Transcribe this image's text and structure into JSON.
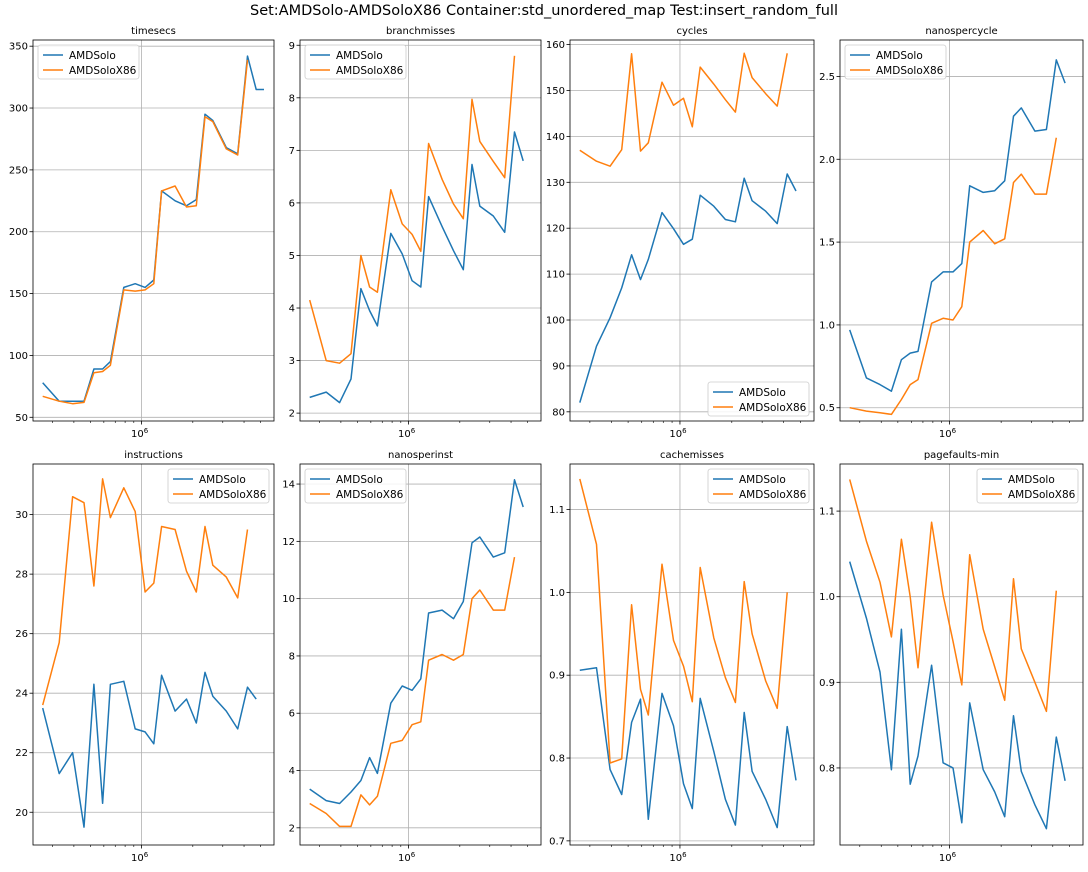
{
  "figure": {
    "suptitle": "Set:AMDSolo-AMDSoloX86  Container:std_unordered_map  Test:insert_random_full"
  },
  "chart_data": [
    {
      "type": "line",
      "title": "timesecs",
      "xscale": "log",
      "x": [
        262144,
        327680,
        393216,
        458752,
        524288,
        589824,
        655360,
        786432,
        917504,
        1048576,
        1179648,
        1310720,
        1572864,
        1835008,
        2097152,
        2359296,
        2621440,
        3145728,
        3670016,
        4194304,
        4718592,
        5242880
      ],
      "xtick_label": "10^6",
      "ylim": [
        47,
        355
      ],
      "yticks": [
        50,
        100,
        150,
        200,
        250,
        300,
        350
      ],
      "legend": "upper left",
      "grid": true,
      "series": [
        {
          "name": "AMDSolo",
          "color": "#1f77b4",
          "values": [
            78,
            63,
            63,
            63,
            89,
            89,
            95,
            155,
            158,
            155,
            161,
            233,
            225,
            221,
            226,
            295,
            290,
            268,
            263,
            342,
            315,
            315
          ]
        },
        {
          "name": "AMDSoloX86",
          "color": "#ff7f0e",
          "values": [
            67,
            63,
            61,
            62,
            86,
            87,
            92,
            153,
            152,
            153,
            158,
            233,
            237,
            220,
            221,
            293,
            289,
            267,
            262,
            339,
            null,
            null
          ]
        }
      ]
    },
    {
      "type": "line",
      "title": "branchmisses",
      "xscale": "log",
      "x": [
        262144,
        327680,
        393216,
        458752,
        524288,
        589824,
        655360,
        786432,
        917504,
        1048576,
        1179648,
        1310720,
        1572864,
        1835008,
        2097152,
        2359296,
        2621440,
        3145728,
        3670016,
        4194304,
        4718592,
        5242880
      ],
      "xtick_label": "10^6",
      "ylim": [
        1.85,
        9.1
      ],
      "yticks": [
        2,
        3,
        4,
        5,
        6,
        7,
        8,
        9
      ],
      "legend": "upper left",
      "grid": true,
      "series": [
        {
          "name": "AMDSolo",
          "color": "#1f77b4",
          "values": [
            2.3,
            2.4,
            2.2,
            2.65,
            4.37,
            3.95,
            3.66,
            5.42,
            5.03,
            4.52,
            4.4,
            6.12,
            5.55,
            5.09,
            4.73,
            6.73,
            5.94,
            5.75,
            5.44,
            7.35,
            6.8,
            null
          ]
        },
        {
          "name": "AMDSoloX86",
          "color": "#ff7f0e",
          "values": [
            4.15,
            3.0,
            2.95,
            3.13,
            5.0,
            4.4,
            4.3,
            6.25,
            5.6,
            5.4,
            5.08,
            7.13,
            6.45,
            5.98,
            5.7,
            7.97,
            7.17,
            6.79,
            6.48,
            8.8,
            null,
            null
          ]
        }
      ]
    },
    {
      "type": "line",
      "title": "cycles",
      "xscale": "log",
      "x": [
        262144,
        327680,
        393216,
        458752,
        524288,
        589824,
        655360,
        786432,
        917504,
        1048576,
        1179648,
        1310720,
        1572864,
        1835008,
        2097152,
        2359296,
        2621440,
        3145728,
        3670016,
        4194304,
        4718592,
        5242880
      ],
      "xtick_label": "10^6",
      "ylim": [
        78,
        161
      ],
      "yticks": [
        80,
        90,
        100,
        110,
        120,
        130,
        140,
        150,
        160
      ],
      "legend": "lower right",
      "grid": true,
      "series": [
        {
          "name": "AMDSolo",
          "color": "#1f77b4",
          "values": [
            82,
            94.3,
            100.5,
            107,
            114.2,
            108.8,
            113.2,
            123.4,
            119.9,
            116.5,
            117.6,
            127.2,
            124.8,
            121.9,
            121.4,
            130.9,
            126,
            123.7,
            121,
            131.8,
            128.1,
            null
          ]
        },
        {
          "name": "AMDSoloX86",
          "color": "#ff7f0e",
          "values": [
            137,
            134.6,
            133.5,
            137.1,
            158,
            136.8,
            138.6,
            151.8,
            146.8,
            148.3,
            142.1,
            155.1,
            151.4,
            148,
            145.3,
            158.1,
            152.8,
            149.3,
            146.6,
            158.1,
            null,
            null
          ]
        }
      ]
    },
    {
      "type": "line",
      "title": "nanospercycle",
      "xscale": "log",
      "x": [
        262144,
        327680,
        393216,
        458752,
        524288,
        589824,
        655360,
        786432,
        917504,
        1048576,
        1179648,
        1310720,
        1572864,
        1835008,
        2097152,
        2359296,
        2621440,
        3145728,
        3670016,
        4194304,
        4718592,
        5242880
      ],
      "xtick_label": "10^6",
      "ylim": [
        0.42,
        2.72
      ],
      "yticks": [
        0.5,
        1.0,
        1.5,
        2.0,
        2.5
      ],
      "legend": "upper left",
      "grid": true,
      "series": [
        {
          "name": "AMDSolo",
          "color": "#1f77b4",
          "values": [
            0.97,
            0.68,
            0.64,
            0.6,
            0.79,
            0.83,
            0.84,
            1.26,
            1.32,
            1.32,
            1.37,
            1.84,
            1.8,
            1.81,
            1.87,
            2.26,
            2.31,
            2.17,
            2.18,
            2.6,
            2.46,
            null
          ]
        },
        {
          "name": "AMDSoloX86",
          "color": "#ff7f0e",
          "values": [
            0.5,
            0.48,
            0.47,
            0.46,
            0.55,
            0.64,
            0.67,
            1.01,
            1.04,
            1.03,
            1.11,
            1.5,
            1.57,
            1.49,
            1.52,
            1.86,
            1.91,
            1.79,
            1.79,
            2.13,
            null,
            null
          ]
        }
      ]
    },
    {
      "type": "line",
      "title": "instructions",
      "xscale": "log",
      "x": [
        262144,
        327680,
        393216,
        458752,
        524288,
        589824,
        655360,
        786432,
        917504,
        1048576,
        1179648,
        1310720,
        1572864,
        1835008,
        2097152,
        2359296,
        2621440,
        3145728,
        3670016,
        4194304,
        4718592,
        5242880
      ],
      "xtick_label": "10^6",
      "ylim": [
        18.9,
        31.7
      ],
      "yticks": [
        20,
        22,
        24,
        26,
        28,
        30
      ],
      "legend": "upper right",
      "grid": true,
      "series": [
        {
          "name": "AMDSolo",
          "color": "#1f77b4",
          "values": [
            23.5,
            21.3,
            22.0,
            19.5,
            24.3,
            20.3,
            24.3,
            24.4,
            22.8,
            22.7,
            22.3,
            24.6,
            23.4,
            23.8,
            23.0,
            24.7,
            23.9,
            23.4,
            22.8,
            24.2,
            23.8,
            null
          ]
        },
        {
          "name": "AMDSoloX86",
          "color": "#ff7f0e",
          "values": [
            23.6,
            25.7,
            30.6,
            30.4,
            27.6,
            31.2,
            29.9,
            30.9,
            30.1,
            27.4,
            27.7,
            29.6,
            29.5,
            28.1,
            27.4,
            29.6,
            28.3,
            27.9,
            27.2,
            29.5,
            null,
            null
          ]
        }
      ]
    },
    {
      "type": "line",
      "title": "nanosperinst",
      "xscale": "log",
      "x": [
        262144,
        327680,
        393216,
        458752,
        524288,
        589824,
        655360,
        786432,
        917504,
        1048576,
        1179648,
        1310720,
        1572864,
        1835008,
        2097152,
        2359296,
        2621440,
        3145728,
        3670016,
        4194304,
        4718592,
        5242880
      ],
      "xtick_label": "10^6",
      "ylim": [
        1.4,
        14.7
      ],
      "yticks": [
        2,
        4,
        6,
        8,
        10,
        12,
        14
      ],
      "legend": "upper left",
      "grid": true,
      "series": [
        {
          "name": "AMDSolo",
          "color": "#1f77b4",
          "values": [
            3.35,
            2.95,
            2.85,
            3.25,
            3.65,
            4.45,
            3.9,
            6.35,
            6.95,
            6.8,
            7.2,
            9.5,
            9.6,
            9.3,
            9.9,
            11.95,
            12.15,
            11.45,
            11.6,
            14.15,
            13.2,
            null
          ]
        },
        {
          "name": "AMDSoloX86",
          "color": "#ff7f0e",
          "values": [
            2.85,
            2.5,
            2.05,
            2.05,
            3.15,
            2.8,
            3.1,
            4.95,
            5.05,
            5.6,
            5.7,
            7.85,
            8.05,
            7.85,
            8.05,
            10.0,
            10.3,
            9.6,
            9.6,
            11.45,
            null,
            null
          ]
        }
      ]
    },
    {
      "type": "line",
      "title": "cachemisses",
      "xscale": "log",
      "x": [
        262144,
        327680,
        393216,
        458752,
        524288,
        589824,
        655360,
        786432,
        917504,
        1048576,
        1179648,
        1310720,
        1572864,
        1835008,
        2097152,
        2359296,
        2621440,
        3145728,
        3670016,
        4194304,
        4718592,
        5242880
      ],
      "xtick_label": "10^6",
      "ylim": [
        0.695,
        1.155
      ],
      "yticks": [
        0.7,
        0.8,
        0.9,
        1.0,
        1.1
      ],
      "legend": "upper right",
      "grid": true,
      "series": [
        {
          "name": "AMDSolo",
          "color": "#1f77b4",
          "values": [
            0.906,
            0.909,
            0.786,
            0.756,
            0.843,
            0.871,
            0.726,
            0.878,
            0.839,
            0.769,
            0.739,
            0.872,
            0.808,
            0.75,
            0.719,
            0.855,
            0.784,
            0.75,
            0.716,
            0.838,
            0.773,
            null
          ]
        },
        {
          "name": "AMDSoloX86",
          "color": "#ff7f0e",
          "values": [
            1.137,
            1.058,
            0.794,
            0.799,
            0.985,
            0.883,
            0.852,
            1.034,
            0.942,
            0.911,
            0.868,
            1.03,
            0.945,
            0.897,
            0.867,
            1.013,
            0.95,
            0.893,
            0.86,
            1.0,
            null,
            null
          ]
        }
      ]
    },
    {
      "type": "line",
      "title": "pagefaults-min",
      "xscale": "log",
      "x": [
        262144,
        327680,
        393216,
        458752,
        524288,
        589824,
        655360,
        786432,
        917504,
        1048576,
        1179648,
        1310720,
        1572864,
        1835008,
        2097152,
        2359296,
        2621440,
        3145728,
        3670016,
        4194304,
        4718592,
        5242880
      ],
      "xtick_label": "10^6",
      "ylim": [
        0.71,
        1.155
      ],
      "yticks": [
        0.8,
        0.9,
        1.0,
        1.1
      ],
      "legend": "upper right",
      "grid": true,
      "series": [
        {
          "name": "AMDSolo",
          "color": "#1f77b4",
          "values": [
            1.041,
            0.975,
            0.912,
            0.798,
            0.962,
            0.781,
            0.814,
            0.92,
            0.806,
            0.8,
            0.736,
            0.876,
            0.798,
            0.772,
            0.743,
            0.861,
            0.796,
            0.757,
            0.729,
            0.836,
            0.785,
            null
          ]
        },
        {
          "name": "AMDSoloX86",
          "color": "#ff7f0e",
          "values": [
            1.137,
            1.065,
            1.017,
            0.953,
            1.067,
            1.0,
            0.917,
            1.087,
            1.002,
            0.948,
            0.897,
            1.049,
            0.962,
            0.918,
            0.879,
            1.021,
            0.939,
            0.9,
            0.866,
            1.007,
            null,
            null
          ]
        }
      ]
    }
  ]
}
